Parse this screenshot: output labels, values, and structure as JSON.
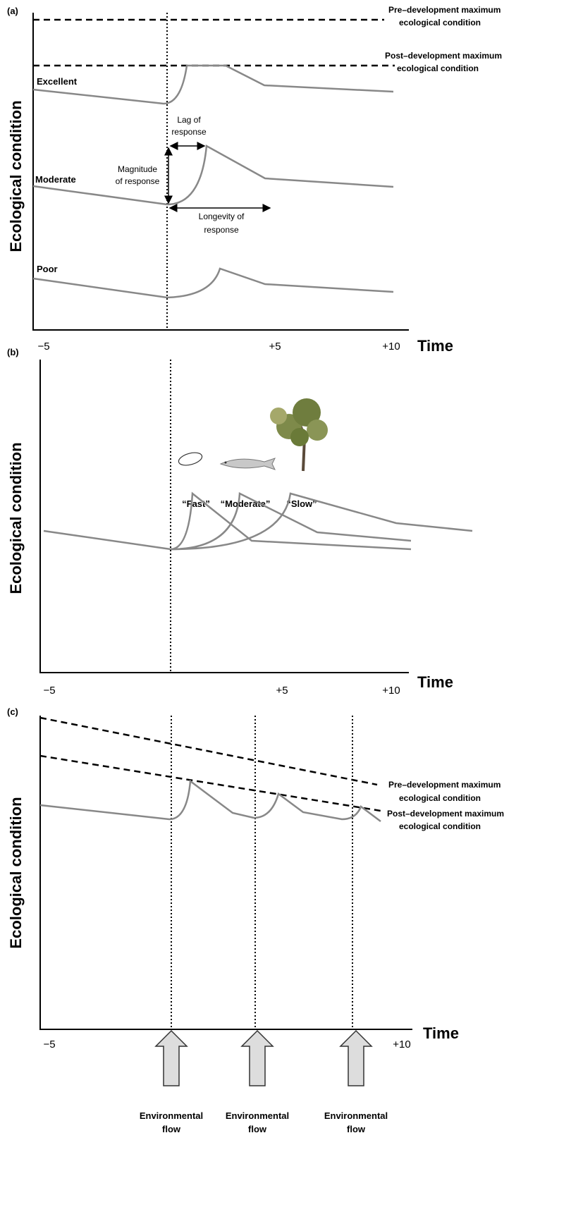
{
  "panels": [
    {
      "label": "(a)",
      "y_axis_label": "Ecological condition",
      "x_axis_label": "Time",
      "x_ticks": [
        "−5",
        "+5",
        "+10"
      ],
      "reference_lines": [
        [
          "Pre–development maximum",
          "ecological condition"
        ],
        [
          "Post–development maximum",
          "ecological condition"
        ]
      ],
      "levels": [
        "Excellent",
        "Moderate",
        "Poor"
      ],
      "annotations": {
        "lag": [
          "Lag of",
          "response"
        ],
        "magnitude": [
          "Magnitude",
          "of response"
        ],
        "longevity": [
          "Longevity of",
          "response"
        ]
      }
    },
    {
      "label": "(b)",
      "y_axis_label": "Ecological condition",
      "x_axis_label": "Time",
      "x_ticks": [
        "−5",
        "+5",
        "+10"
      ],
      "response_types": [
        "“Fast”",
        "“Moderate”",
        "“Slow”"
      ]
    },
    {
      "label": "(c)",
      "y_axis_label": "Ecological condition",
      "x_axis_label": "Time",
      "x_ticks": [
        "−5",
        "+10"
      ],
      "reference_lines": [
        [
          "Pre–development maximum",
          "ecological condition"
        ],
        [
          "Post–development maximum",
          "ecological condition"
        ]
      ],
      "events": [
        [
          "Environmental",
          "flow"
        ],
        [
          "Environmental",
          "flow"
        ],
        [
          "Environmental",
          "flow"
        ]
      ]
    }
  ]
}
